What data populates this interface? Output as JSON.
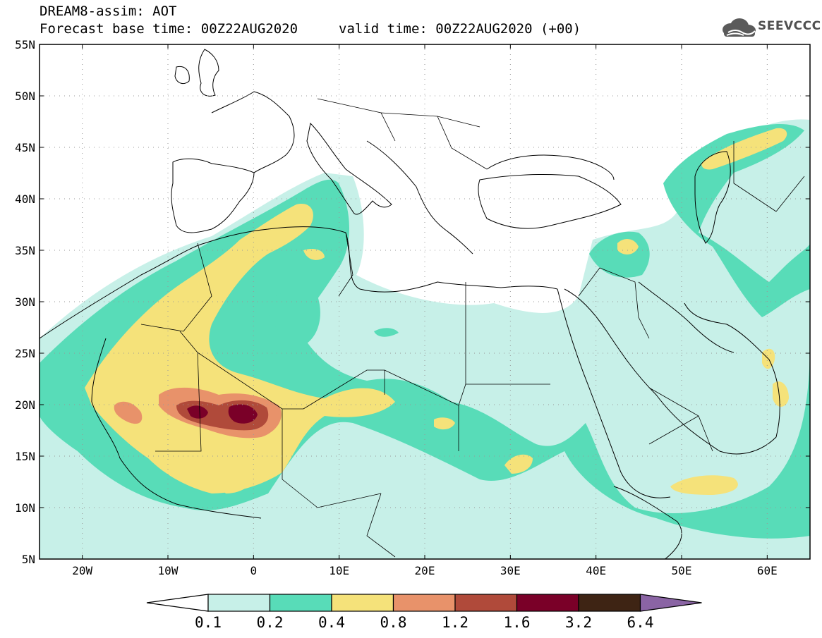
{
  "header": {
    "title_line1": "DREAM8-assim: AOT",
    "title_line2": "Forecast base time: 00Z22AUG2020",
    "valid_time": "valid time: 00Z22AUG2020 (+00)"
  },
  "logo": {
    "text": "SEEVCCC",
    "icon": "cloud-icon"
  },
  "map": {
    "variable": "AOT",
    "lon_range": [
      -25,
      65
    ],
    "lat_range": [
      5,
      55
    ],
    "lat_labels": [
      "55N",
      "50N",
      "45N",
      "40N",
      "35N",
      "30N",
      "25N",
      "20N",
      "15N",
      "10N",
      "5N"
    ],
    "lon_labels": [
      "20W",
      "10W",
      "0",
      "10E",
      "20E",
      "30E",
      "40E",
      "50E",
      "60E"
    ]
  },
  "colorbar": {
    "labels": [
      "0.1",
      "0.2",
      "0.4",
      "0.8",
      "1.2",
      "1.6",
      "3.2",
      "6.4"
    ],
    "colors": [
      "#ffffff",
      "#c7f0e8",
      "#58dcb8",
      "#f5e27a",
      "#e8926a",
      "#b04a3a",
      "#7a0028",
      "#3e2414",
      "#8a64a4"
    ]
  }
}
